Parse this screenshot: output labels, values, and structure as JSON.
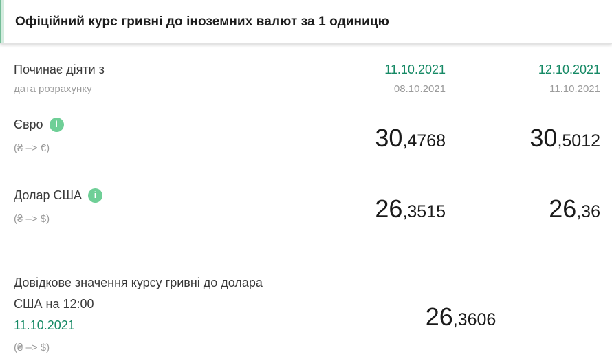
{
  "header": {
    "title": "Офіційний курс гривні до іноземних валют за 1 одиницю"
  },
  "colors": {
    "accent_green": "#178a66",
    "info_icon_green": "#6fcf97",
    "header_accent_light": "#d4ecdf",
    "muted_gray": "#9b9b9b"
  },
  "icons": {
    "info": "i"
  },
  "table": {
    "effective_row": {
      "label": "Починає діяти з",
      "sublabel": "дата розрахунку",
      "columns": [
        {
          "effective_date": "11.10.2021",
          "calculation_date": "08.10.2021"
        },
        {
          "effective_date": "12.10.2021",
          "calculation_date": "11.10.2021"
        }
      ]
    },
    "currency_rows": [
      {
        "name": "Євро",
        "pair": "(₴ –> €)",
        "values": [
          {
            "int": "30",
            "frac": ",4768"
          },
          {
            "int": "30",
            "frac": ",5012"
          }
        ]
      },
      {
        "name": "Долар США",
        "pair": "(₴ –> $)",
        "values": [
          {
            "int": "26",
            "frac": ",3515"
          },
          {
            "int": "26",
            "frac": ",36"
          }
        ]
      }
    ]
  },
  "reference": {
    "title": "Довідкове значення курсу гривні до долара США на 12:00",
    "date": "11.10.2021",
    "pair": "(₴ –> $)",
    "value": {
      "int": "26",
      "frac": ",3606"
    }
  }
}
